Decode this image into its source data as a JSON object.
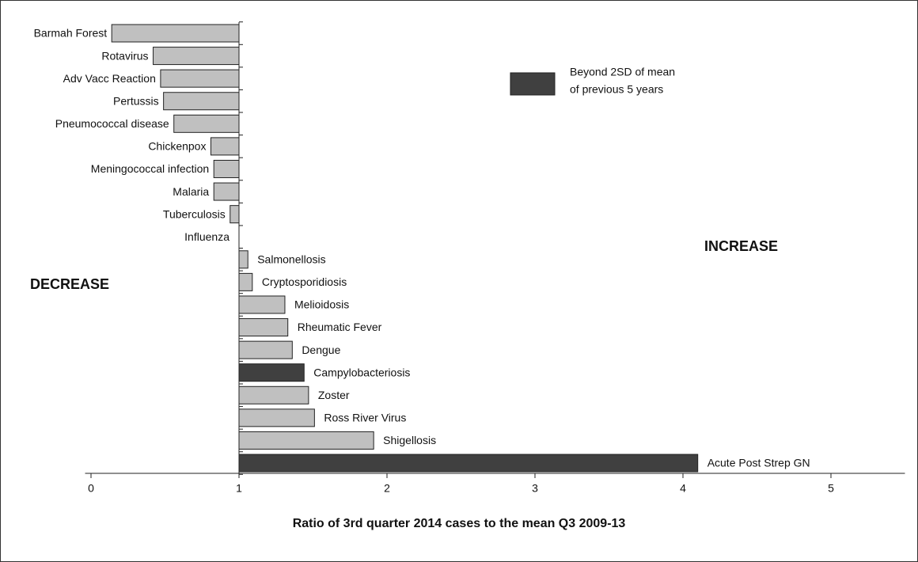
{
  "chart_data": {
    "type": "bar",
    "orientation": "horizontal",
    "categories": [
      "Barmah Forest",
      "Rotavirus",
      "Adv Vacc Reaction",
      "Pertussis",
      "Pneumococcal disease",
      "Chickenpox",
      "Meningococcal infection",
      "Malaria",
      "Tuberculosis",
      "Influenza",
      "Salmonellosis",
      "Cryptosporidiosis",
      "Melioidosis",
      "Rheumatic Fever",
      "Dengue",
      "Campylobacteriosis",
      "Zoster",
      "Ross River Virus",
      "Shigellosis",
      "Acute Post Strep GN"
    ],
    "values": [
      0.14,
      0.42,
      0.47,
      0.49,
      0.56,
      0.81,
      0.83,
      0.83,
      0.94,
      1.0,
      1.06,
      1.09,
      1.31,
      1.33,
      1.36,
      1.44,
      1.47,
      1.51,
      1.91,
      4.1
    ],
    "colors": [
      "#c0c0c0",
      "#c0c0c0",
      "#c0c0c0",
      "#c0c0c0",
      "#c0c0c0",
      "#c0c0c0",
      "#c0c0c0",
      "#c0c0c0",
      "#c0c0c0",
      "#c0c0c0",
      "#c0c0c0",
      "#c0c0c0",
      "#c0c0c0",
      "#c0c0c0",
      "#c0c0c0",
      "#404040",
      "#c0c0c0",
      "#c0c0c0",
      "#c0c0c0",
      "#404040"
    ],
    "baseline": 1,
    "xlim": [
      -0.04,
      5.5
    ],
    "xticks": [
      0,
      1,
      2,
      3,
      4,
      5
    ],
    "x_label": "Ratio of 3rd quarter 2014 cases to the mean Q3 2009-13",
    "annotations": [
      "DECREASE",
      "INCREASE"
    ],
    "legend": {
      "label_lines": [
        "Beyond 2SD of mean",
        "of previous 5 years"
      ],
      "color": "#404040"
    }
  }
}
